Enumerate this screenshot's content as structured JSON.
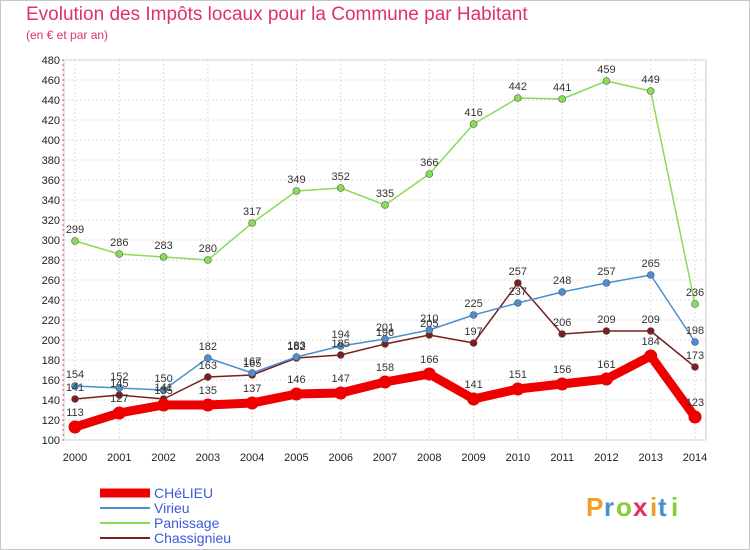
{
  "header": {
    "title": "Evolution des Impôts locaux pour la Commune par Habitant",
    "subtitle": "(en € et par an)"
  },
  "logo": {
    "text": "Proxiti"
  },
  "chart_data": {
    "type": "line",
    "title": "Evolution des Impôts locaux pour la Commune par Habitant",
    "subtitle": "(en € et par an)",
    "xlabel": "",
    "ylabel": "",
    "x": [
      "2000",
      "2001",
      "2002",
      "2003",
      "2004",
      "2005",
      "2006",
      "2007",
      "2008",
      "2009",
      "2010",
      "2011",
      "2012",
      "2013",
      "2014"
    ],
    "ylim": [
      100,
      480
    ],
    "yticks": [
      100,
      120,
      140,
      160,
      180,
      200,
      220,
      240,
      260,
      280,
      300,
      320,
      340,
      360,
      380,
      400,
      420,
      440,
      460,
      480
    ],
    "grid": true,
    "legend_placement": "bottom-left",
    "series": [
      {
        "name": "CHéLIEU",
        "color": "#ee0000",
        "values": [
          113,
          127,
          135,
          135,
          137,
          146,
          147,
          158,
          166,
          141,
          151,
          156,
          161,
          184,
          123
        ]
      },
      {
        "name": "Virieu",
        "color": "#4a90d0",
        "values": [
          154,
          152,
          150,
          182,
          167,
          183,
          194,
          201,
          210,
          225,
          237,
          248,
          257,
          265,
          198
        ]
      },
      {
        "name": "Panissage",
        "color": "#88dd55",
        "values": [
          299,
          286,
          283,
          280,
          317,
          349,
          352,
          335,
          366,
          416,
          442,
          441,
          459,
          449,
          236
        ]
      },
      {
        "name": "Chassignieu",
        "color": "#7a1e1e",
        "values": [
          141,
          145,
          141,
          163,
          165,
          182,
          185,
          196,
          205,
          197,
          257,
          206,
          209,
          209,
          173
        ]
      }
    ]
  }
}
